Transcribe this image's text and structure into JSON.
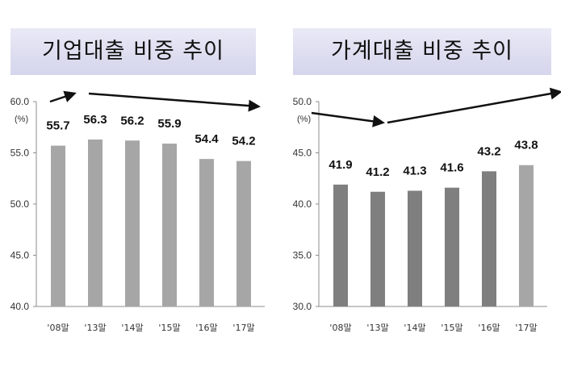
{
  "chart_data": [
    {
      "type": "bar",
      "title": "기업대출 비중 추이",
      "unit": "(%)",
      "categories": [
        "'08말",
        "'13말",
        "'14말",
        "'15말",
        "'16말",
        "'17말"
      ],
      "values": [
        55.7,
        56.3,
        56.2,
        55.9,
        54.4,
        54.2
      ],
      "data_labels": [
        "55.7",
        "56.3",
        "56.2",
        "55.9",
        "54.4",
        "54.2"
      ],
      "ylim": [
        40.0,
        60.0
      ],
      "yticks": [
        "40.0",
        "45.0",
        "50.0",
        "55.0",
        "60.0"
      ],
      "bar_color": "#a6a6a6",
      "trend_arrows": [
        [
          "'08말",
          "'13말"
        ],
        [
          "'13말",
          "'17말"
        ]
      ],
      "grid": false
    },
    {
      "type": "bar",
      "title": "가계대출 비중 추이",
      "unit": "(%)",
      "categories": [
        "'08말",
        "'13말",
        "'14말",
        "'15말",
        "'16말",
        "'17말"
      ],
      "values": [
        41.9,
        41.2,
        41.3,
        41.6,
        43.2,
        43.8
      ],
      "data_labels": [
        "41.9",
        "41.2",
        "41.3",
        "41.6",
        "43.2",
        "43.8"
      ],
      "ylim": [
        30.0,
        50.0
      ],
      "yticks": [
        "30.0",
        "35.0",
        "40.0",
        "45.0",
        "50.0"
      ],
      "bar_color": "#7f7f7f",
      "last_bar_color": "#a6a6a6",
      "trend_arrows": [
        [
          "'08말",
          "'13말"
        ],
        [
          "'13말",
          "'17말"
        ]
      ],
      "grid": false
    }
  ]
}
